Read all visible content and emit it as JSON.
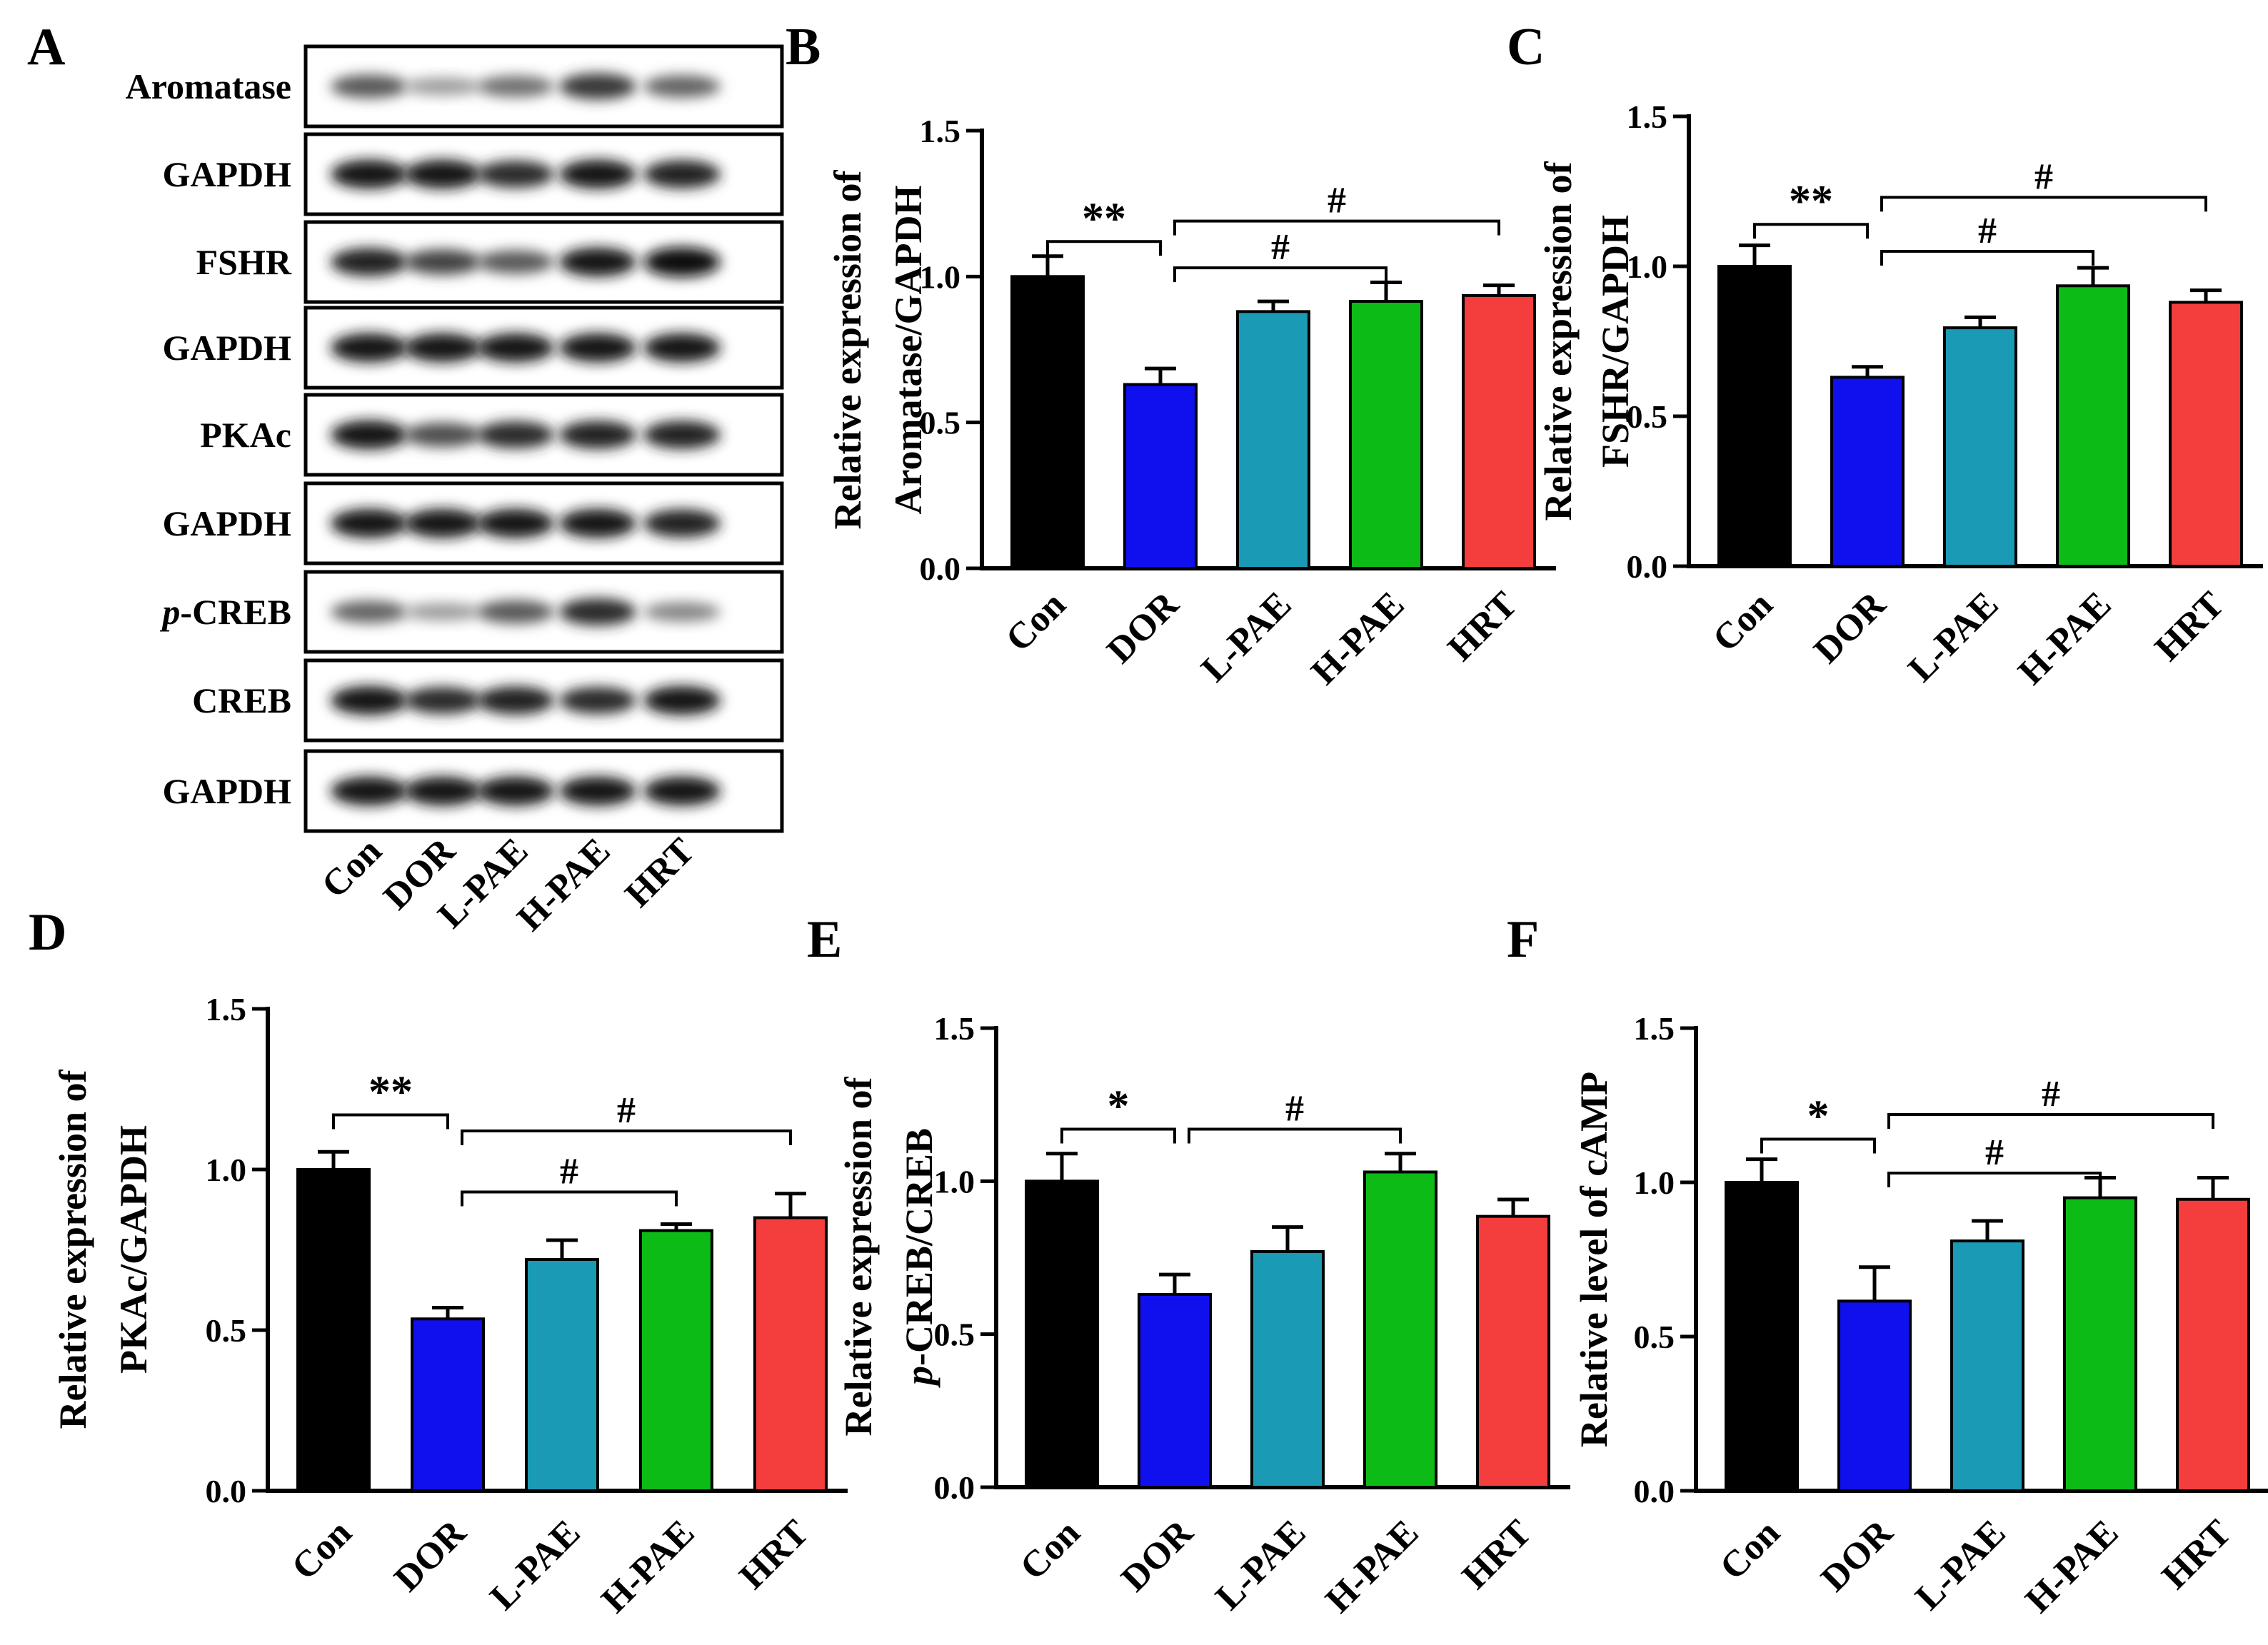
{
  "panel_labels": {
    "a": "A",
    "b": "B",
    "c": "C",
    "d": "D",
    "e": "E",
    "f": "F"
  },
  "colors": {
    "Con": "#000000",
    "DOR": "#1010ee",
    "L-PAE": "#1a9ab4",
    "H-PAE": "#0dbb16",
    "HRT": "#f43d3d"
  },
  "blot": {
    "lanes": [
      "Con",
      "DOR",
      "L-PAE",
      "H-PAE",
      "HRT"
    ],
    "rows": [
      {
        "label": "Aromatase",
        "intensity": [
          0.65,
          0.35,
          0.55,
          0.8,
          0.6
        ]
      },
      {
        "label": "GAPDH",
        "intensity": [
          0.95,
          0.95,
          0.85,
          0.95,
          0.9
        ]
      },
      {
        "label": "FSHR",
        "intensity": [
          0.9,
          0.75,
          0.65,
          0.95,
          1.0
        ]
      },
      {
        "label": "GAPDH",
        "intensity": [
          0.95,
          0.95,
          0.95,
          0.95,
          0.95
        ]
      },
      {
        "label": "PKAc",
        "intensity": [
          0.95,
          0.7,
          0.85,
          0.9,
          0.9
        ]
      },
      {
        "label": "GAPDH",
        "intensity": [
          0.95,
          0.95,
          0.95,
          0.95,
          0.9
        ]
      },
      {
        "label": "p-CREB",
        "label_italic": "p",
        "label_rest": "-CREB",
        "intensity": [
          0.6,
          0.35,
          0.65,
          0.85,
          0.45
        ]
      },
      {
        "label": "CREB",
        "intensity": [
          0.95,
          0.85,
          0.9,
          0.85,
          0.95
        ]
      },
      {
        "label": "GAPDH",
        "intensity": [
          0.95,
          0.95,
          0.95,
          0.95,
          0.95
        ]
      }
    ]
  },
  "chart_data": [
    {
      "panel": "B",
      "type": "bar",
      "ylabel_lines": [
        "Relative expression of",
        "Aromatase/GAPDH"
      ],
      "categories": [
        "Con",
        "DOR",
        "L-PAE",
        "H-PAE",
        "HRT"
      ],
      "values": [
        1.0,
        0.63,
        0.88,
        0.915,
        0.935
      ],
      "errors": [
        0.07,
        0.055,
        0.035,
        0.065,
        0.035
      ],
      "ylim": [
        0,
        1.5
      ],
      "yticks": [
        "0.0",
        "0.5",
        "1.0",
        "1.5"
      ],
      "annotations": [
        {
          "from": 0,
          "to": 1,
          "text": "**",
          "y": 1.12
        },
        {
          "from": 1,
          "to": 3,
          "text": "#",
          "y": 1.03
        },
        {
          "from": 1,
          "to": 4,
          "text": "#",
          "y": 1.19
        }
      ]
    },
    {
      "panel": "C",
      "type": "bar",
      "ylabel_lines": [
        "Relative expression of",
        "FSHR/GAPDH"
      ],
      "categories": [
        "Con",
        "DOR",
        "L-PAE",
        "H-PAE",
        "HRT"
      ],
      "values": [
        1.0,
        0.63,
        0.795,
        0.935,
        0.88
      ],
      "errors": [
        0.07,
        0.035,
        0.035,
        0.06,
        0.04
      ],
      "ylim": [
        0,
        1.5
      ],
      "yticks": [
        "0.0",
        "0.5",
        "1.0",
        "1.5"
      ],
      "annotations": [
        {
          "from": 0,
          "to": 1,
          "text": "**",
          "y": 1.14
        },
        {
          "from": 1,
          "to": 3,
          "text": "#",
          "y": 1.05
        },
        {
          "from": 1,
          "to": 4,
          "text": "#",
          "y": 1.23
        }
      ]
    },
    {
      "panel": "D",
      "type": "bar",
      "ylabel_lines": [
        "Relative expression of",
        "PKAc/GAPDH"
      ],
      "categories": [
        "Con",
        "DOR",
        "L-PAE",
        "H-PAE",
        "HRT"
      ],
      "values": [
        1.0,
        0.535,
        0.72,
        0.81,
        0.85
      ],
      "errors": [
        0.055,
        0.035,
        0.06,
        0.02,
        0.075
      ],
      "ylim": [
        0,
        1.5
      ],
      "yticks": [
        "0.0",
        "0.5",
        "1.0",
        "1.5"
      ],
      "annotations": [
        {
          "from": 0,
          "to": 1,
          "text": "**",
          "y": 1.17
        },
        {
          "from": 1,
          "to": 3,
          "text": "#",
          "y": 0.93
        },
        {
          "from": 1,
          "to": 4,
          "text": "#",
          "y": 1.12
        }
      ]
    },
    {
      "panel": "E",
      "type": "bar",
      "ylabel_lines": [
        "Relative expression of",
        "p-CREB/CREB"
      ],
      "ylabel_italic_prefix": "p",
      "categories": [
        "Con",
        "DOR",
        "L-PAE",
        "H-PAE",
        "HRT"
      ],
      "values": [
        1.0,
        0.63,
        0.77,
        1.03,
        0.885
      ],
      "errors": [
        0.09,
        0.065,
        0.08,
        0.06,
        0.055
      ],
      "ylim": [
        0,
        1.5
      ],
      "yticks": [
        "0.0",
        "0.5",
        "1.0",
        "1.5"
      ],
      "annotations": [
        {
          "from": 0,
          "to": 1,
          "text": "*",
          "y": 1.17
        },
        {
          "from": 1,
          "to": 3,
          "text": "#",
          "y": 1.17
        }
      ]
    },
    {
      "panel": "F",
      "type": "bar",
      "ylabel_lines": [
        "Relative level of cAMP"
      ],
      "categories": [
        "Con",
        "DOR",
        "L-PAE",
        "H-PAE",
        "HRT"
      ],
      "values": [
        1.0,
        0.615,
        0.81,
        0.95,
        0.945
      ],
      "errors": [
        0.075,
        0.11,
        0.065,
        0.065,
        0.07
      ],
      "ylim": [
        0,
        1.5
      ],
      "yticks": [
        "0.0",
        "0.5",
        "1.0",
        "1.5"
      ],
      "annotations": [
        {
          "from": 0,
          "to": 1,
          "text": "*",
          "y": 1.14
        },
        {
          "from": 1,
          "to": 3,
          "text": "#",
          "y": 1.03
        },
        {
          "from": 1,
          "to": 4,
          "text": "#",
          "y": 1.22
        }
      ]
    }
  ]
}
